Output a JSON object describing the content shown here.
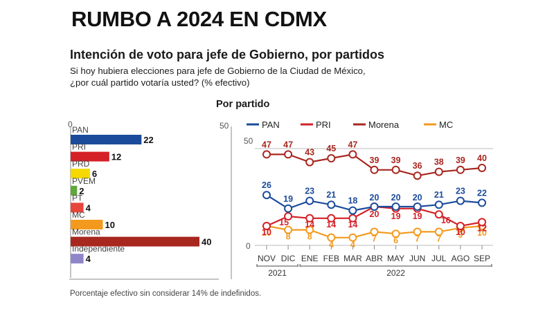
{
  "header": {
    "title": "RUMBO A 2024 EN CDMX",
    "subtitle": "Intención de voto para jefe de Gobierno, por partidos",
    "question_line1": "Si hoy hubiera elecciones para jefe de Gobierno de la Ciudad de México,",
    "question_line2": "¿por cuál partido votaría usted? (% efectivo)",
    "section_label": "Por partido"
  },
  "footnote": "Porcentaje efectivo sin considerar 14% de indefinidos.",
  "colors": {
    "PAN": "#1b4b9b",
    "PRI": "#d42027",
    "PRD": "#f5d800",
    "PVEM": "#5fa83a",
    "PT": "#e8453c",
    "MC": "#f39a1e",
    "Morena": "#a8271f",
    "Independiente": "#8f86c9",
    "axis": "#888888",
    "grid": "#bbbbbb"
  },
  "chart_data": [
    {
      "type": "bar",
      "orientation": "horizontal",
      "axis_min_label": "0",
      "xlim": [
        0,
        40
      ],
      "categories": [
        "PAN",
        "PRI",
        "PRD",
        "PVEM",
        "PT",
        "MC",
        "Morena",
        "Independiente"
      ],
      "values": [
        22,
        12,
        6,
        2,
        4,
        10,
        40,
        4
      ]
    },
    {
      "type": "line",
      "ylim": [
        0,
        50
      ],
      "yticks": [
        "50",
        "0"
      ],
      "outer_ytick_top": "50",
      "x": [
        "NOV",
        "DIC",
        "ENE",
        "FEB",
        "MAR",
        "ABR",
        "MAY",
        "JUN",
        "JUL",
        "AGO",
        "SEP"
      ],
      "year_labels": [
        {
          "label": "2021",
          "start": 0,
          "end": 1
        },
        {
          "label": "2022",
          "start": 2,
          "end": 10
        }
      ],
      "legend_position": "top",
      "series": [
        {
          "name": "PAN",
          "values": [
            26,
            19,
            23,
            21,
            18,
            20,
            20,
            20,
            21,
            23,
            22
          ]
        },
        {
          "name": "PRI",
          "values": [
            10,
            15,
            14,
            14,
            14,
            20,
            19,
            19,
            16,
            10,
            12
          ]
        },
        {
          "name": "Morena",
          "values": [
            47,
            47,
            43,
            45,
            47,
            39,
            39,
            36,
            38,
            39,
            40
          ]
        },
        {
          "name": "MC",
          "values": [
            10,
            8,
            8,
            4,
            4,
            7,
            6,
            7,
            7,
            9,
            10
          ]
        }
      ]
    }
  ]
}
